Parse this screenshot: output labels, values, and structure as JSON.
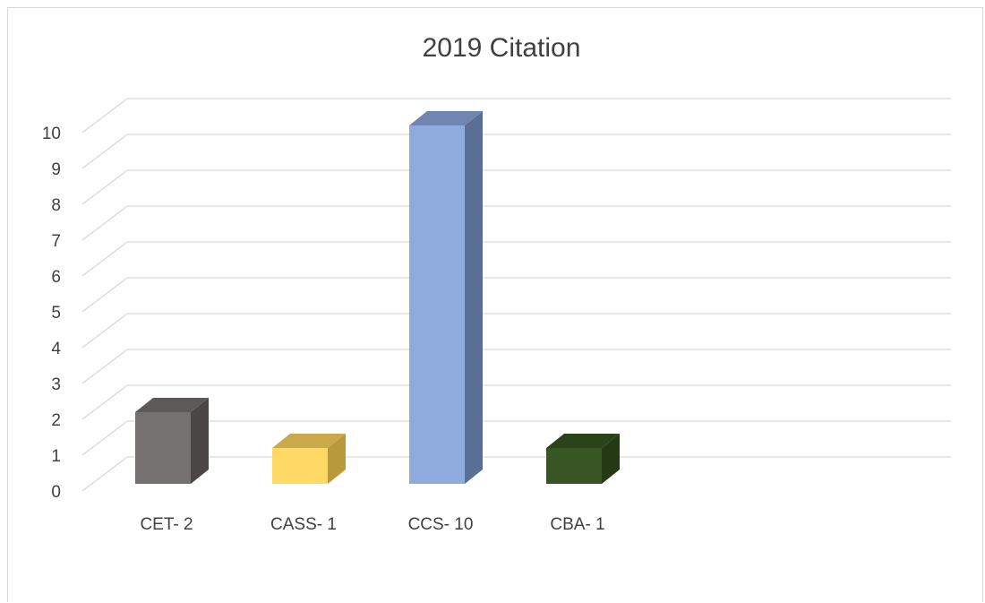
{
  "chart_data": {
    "type": "bar",
    "title": "2019 Citation",
    "categories": [
      "CET- 2",
      "CASS- 1",
      "CCS- 10",
      "CBA- 1"
    ],
    "values": [
      2,
      1,
      10,
      1
    ],
    "ylim": [
      0,
      10
    ],
    "yticks": [
      "0",
      "1",
      "2",
      "3",
      "4",
      "5",
      "6",
      "7",
      "8",
      "9",
      "10"
    ],
    "grid": true,
    "style": "3d-column",
    "colors": [
      {
        "front": "#767171",
        "side": "#4a4645",
        "top": "#5d5958"
      },
      {
        "front": "#ffd966",
        "side": "#b89a3c",
        "top": "#c9a94a"
      },
      {
        "front": "#8faadc",
        "side": "#5a6e96",
        "top": "#7086b0"
      },
      {
        "front": "#375623",
        "side": "#233a14",
        "top": "#2a4319"
      }
    ]
  }
}
